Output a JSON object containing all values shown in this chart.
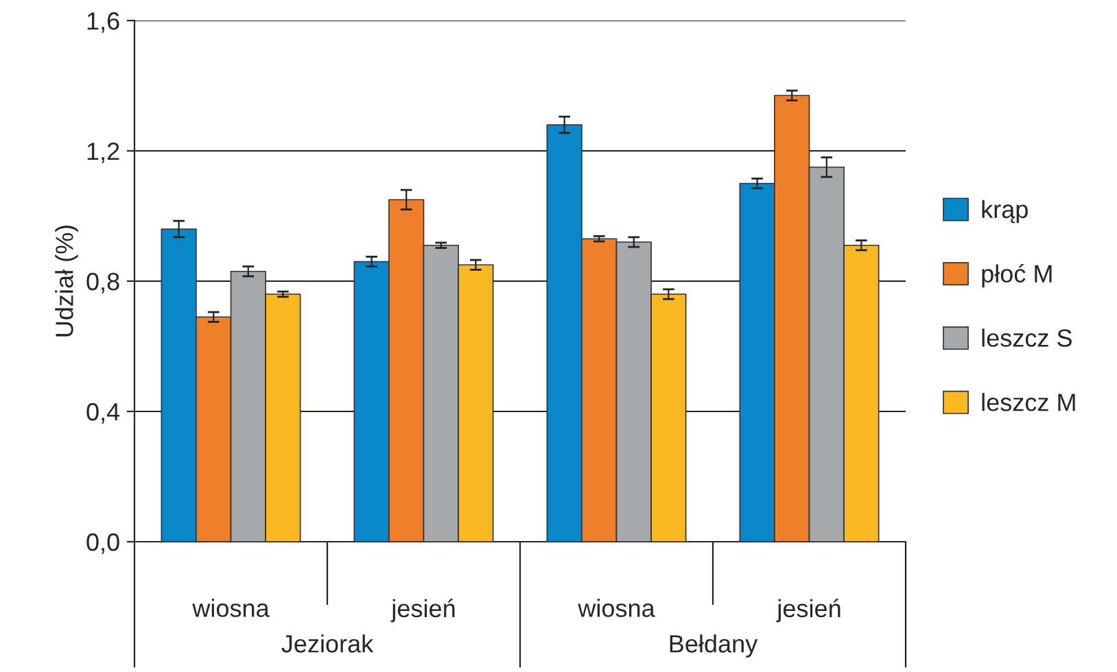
{
  "chart_data": {
    "type": "bar",
    "ylabel": "Udział (%)",
    "categories": [
      "wiosna",
      "jesień",
      "wiosna",
      "jesień"
    ],
    "series": [
      {
        "name": "krąp",
        "color": "#0a87c8",
        "values": [
          0.96,
          0.86,
          1.28,
          1.1
        ],
        "errors": [
          0.025,
          0.015,
          0.025,
          0.015
        ]
      },
      {
        "name": "płoć M",
        "color": "#f07f2c",
        "values": [
          0.69,
          1.05,
          0.93,
          1.37
        ],
        "errors": [
          0.015,
          0.03,
          0.008,
          0.015
        ]
      },
      {
        "name": "leszcz S",
        "color": "#a6a8ab",
        "values": [
          0.83,
          0.91,
          0.92,
          1.15
        ],
        "errors": [
          0.015,
          0.008,
          0.015,
          0.03
        ]
      },
      {
        "name": "leszcz M",
        "color": "#f9b821",
        "values": [
          0.76,
          0.85,
          0.76,
          0.91
        ],
        "errors": [
          0.008,
          0.015,
          0.015,
          0.015
        ]
      }
    ],
    "annotations": [
      "Jeziorak",
      "Bełdany"
    ],
    "ylim": [
      0,
      1.6
    ],
    "yticks": [
      {
        "value": 0,
        "label": "0,0"
      },
      {
        "value": 0.4,
        "label": "0,4"
      },
      {
        "value": 0.8,
        "label": "0,8"
      },
      {
        "value": 1.2,
        "label": "1,2"
      },
      {
        "value": 1.6,
        "label": "1,6"
      }
    ],
    "grid": "y",
    "legend": "right"
  }
}
